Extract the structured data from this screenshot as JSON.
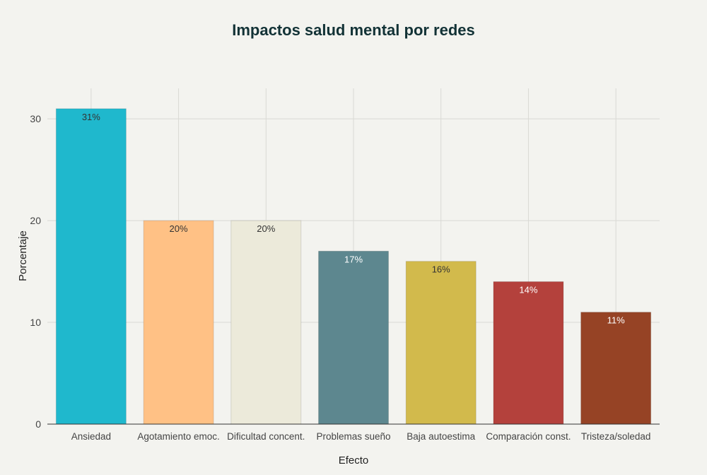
{
  "chart_data": {
    "type": "bar",
    "title": "Impactos salud mental por redes",
    "xlabel": "Efecto",
    "ylabel": "Porcentaje",
    "ylim": [
      0,
      33
    ],
    "yticks": [
      0,
      10,
      20,
      30
    ],
    "categories": [
      "Ansiedad",
      "Agotamiento emoc.",
      "Dificultad concent.",
      "Problemas sueño",
      "Baja autoestima",
      "Comparación const.",
      "Tristeza/soledad"
    ],
    "values": [
      31,
      20,
      20,
      17,
      16,
      14,
      11
    ],
    "data_labels": [
      "31%",
      "20%",
      "20%",
      "17%",
      "16%",
      "14%",
      "11%"
    ],
    "colors": [
      "#1fb8cd",
      "#ffc185",
      "#eceada",
      "#5d878f",
      "#d2ba4c",
      "#b4413c",
      "#964325"
    ],
    "label_colors": [
      "#333333",
      "#333333",
      "#333333",
      "#ffffff",
      "#333333",
      "#ffffff",
      "#ffffff"
    ],
    "grid": true,
    "legend": "none"
  }
}
